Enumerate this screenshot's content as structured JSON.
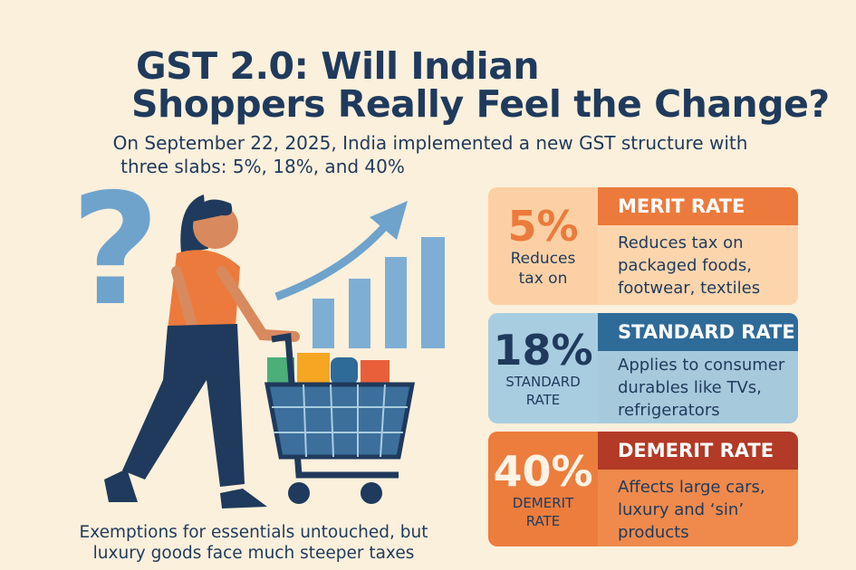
{
  "title": {
    "line1": "GST 2.0: Will Indian",
    "line2": "Shoppers Really Feel the Change?"
  },
  "subtitle": {
    "line1": "On September 22, 2025, India implemented a new GST structure with",
    "line2": "three slabs: 5%, 18%, and 40%"
  },
  "footer": {
    "line1": "Exemptions for essentials untouched, but",
    "line2": "luxury goods face much steeper taxes"
  },
  "illustration": {
    "icons": [
      "question-mark",
      "rising-bar-chart-arrow",
      "woman-shopper",
      "shopping-cart"
    ]
  },
  "cards": [
    {
      "percent": "5%",
      "left_label": [
        "Reduces",
        "tax on"
      ],
      "header": "MERIT RATE",
      "body": [
        "Reduces tax on",
        "packaged foods,",
        "footwear, textiles"
      ],
      "color": "#ec7a3c"
    },
    {
      "percent": "18%",
      "left_label": [
        "STANDARD",
        "RATE"
      ],
      "header": "STANDARD RATE",
      "body": [
        "Applies to consumer",
        "durables like TVs,",
        "refrigerators"
      ],
      "color": "#2f6b98"
    },
    {
      "percent": "40%",
      "left_label": [
        "DEMERIT",
        "RATE"
      ],
      "header": "DEMERIT RATE",
      "body": [
        "Affects large cars,",
        "luxury and ‘sin’",
        "products"
      ],
      "color": "#b23a26"
    }
  ]
}
